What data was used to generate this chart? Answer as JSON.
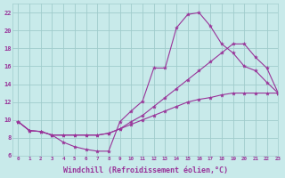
{
  "background_color": "#c8eaea",
  "grid_color": "#a0cccc",
  "line_color": "#993399",
  "marker_color": "#993399",
  "xlabel": "Windchill (Refroidissement éolien,°C)",
  "xlabel_fontsize": 6,
  "xlim": [
    -0.5,
    23
  ],
  "ylim": [
    6,
    23
  ],
  "xtick_labels": [
    "0",
    "1",
    "2",
    "3",
    "4",
    "5",
    "6",
    "7",
    "8",
    "9",
    "10",
    "11",
    "12",
    "13",
    "14",
    "15",
    "16",
    "17",
    "18",
    "19",
    "20",
    "21",
    "22",
    "23"
  ],
  "ytick_values": [
    6,
    8,
    10,
    12,
    14,
    16,
    18,
    20,
    22
  ],
  "series": [
    {
      "x": [
        0,
        1,
        2,
        3,
        4,
        5,
        6,
        7,
        8,
        9,
        10,
        11,
        12,
        13,
        14,
        15,
        16,
        17,
        18,
        19,
        20,
        21,
        22,
        23
      ],
      "y": [
        9.8,
        8.8,
        8.7,
        8.3,
        7.5,
        7.0,
        6.7,
        6.5,
        6.5,
        9.8,
        11.0,
        12.1,
        15.8,
        15.8,
        20.3,
        21.8,
        22.0,
        20.5,
        18.5,
        17.5,
        16.0,
        15.5,
        14.2,
        13.0
      ]
    },
    {
      "x": [
        0,
        1,
        2,
        3,
        4,
        5,
        6,
        7,
        8,
        9,
        10,
        11,
        12,
        13,
        14,
        15,
        16,
        17,
        18,
        19,
        20,
        21,
        22,
        23
      ],
      "y": [
        9.8,
        8.8,
        8.7,
        8.3,
        8.3,
        8.3,
        8.3,
        8.3,
        8.5,
        9.0,
        9.8,
        10.5,
        11.5,
        12.5,
        13.5,
        14.5,
        15.5,
        16.5,
        17.5,
        18.5,
        18.5,
        17.0,
        15.8,
        13.0
      ]
    },
    {
      "x": [
        0,
        1,
        2,
        3,
        4,
        5,
        6,
        7,
        8,
        9,
        10,
        11,
        12,
        13,
        14,
        15,
        16,
        17,
        18,
        19,
        20,
        21,
        22,
        23
      ],
      "y": [
        9.8,
        8.8,
        8.7,
        8.3,
        8.3,
        8.3,
        8.3,
        8.3,
        8.5,
        9.0,
        9.5,
        10.0,
        10.5,
        11.0,
        11.5,
        12.0,
        12.3,
        12.5,
        12.8,
        13.0,
        13.0,
        13.0,
        13.0,
        13.0
      ]
    }
  ]
}
